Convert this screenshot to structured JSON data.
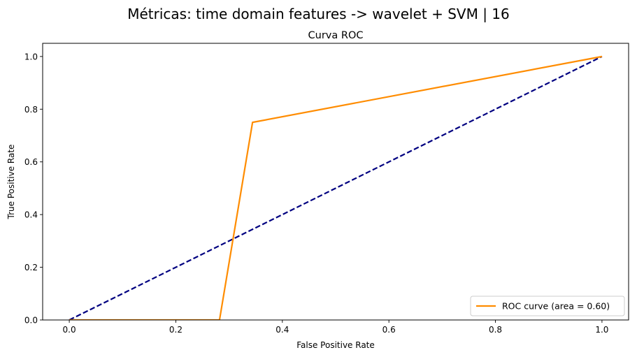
{
  "suptitle": "Métricas: time domain features -> wavelet + SVM | 16",
  "chart_data": {
    "type": "line",
    "title": "Curva ROC",
    "xlabel": "False Positive Rate",
    "ylabel": "True Positive Rate",
    "xlim": [
      -0.05,
      1.05
    ],
    "ylim": [
      0.0,
      1.05
    ],
    "xticks": [
      0.0,
      0.2,
      0.4,
      0.6,
      0.8,
      1.0
    ],
    "xtick_labels": [
      "0.0",
      "0.2",
      "0.4",
      "0.6",
      "0.8",
      "1.0"
    ],
    "yticks": [
      0.0,
      0.2,
      0.4,
      0.6,
      0.8,
      1.0
    ],
    "ytick_labels": [
      "0.0",
      "0.2",
      "0.4",
      "0.6",
      "0.8",
      "1.0"
    ],
    "grid": false,
    "legend_position": "lower right",
    "series": [
      {
        "name": "ROC curve (area = 0.60)",
        "color": "#ff8c00",
        "style": "solid",
        "x": [
          0.0,
          0.282,
          0.344,
          1.0
        ],
        "y": [
          0.0,
          0.0,
          0.75,
          1.0
        ]
      },
      {
        "color": "#000080",
        "style": "dashed",
        "x": [
          0.0,
          1.0
        ],
        "y": [
          0.0,
          1.0
        ]
      }
    ]
  }
}
